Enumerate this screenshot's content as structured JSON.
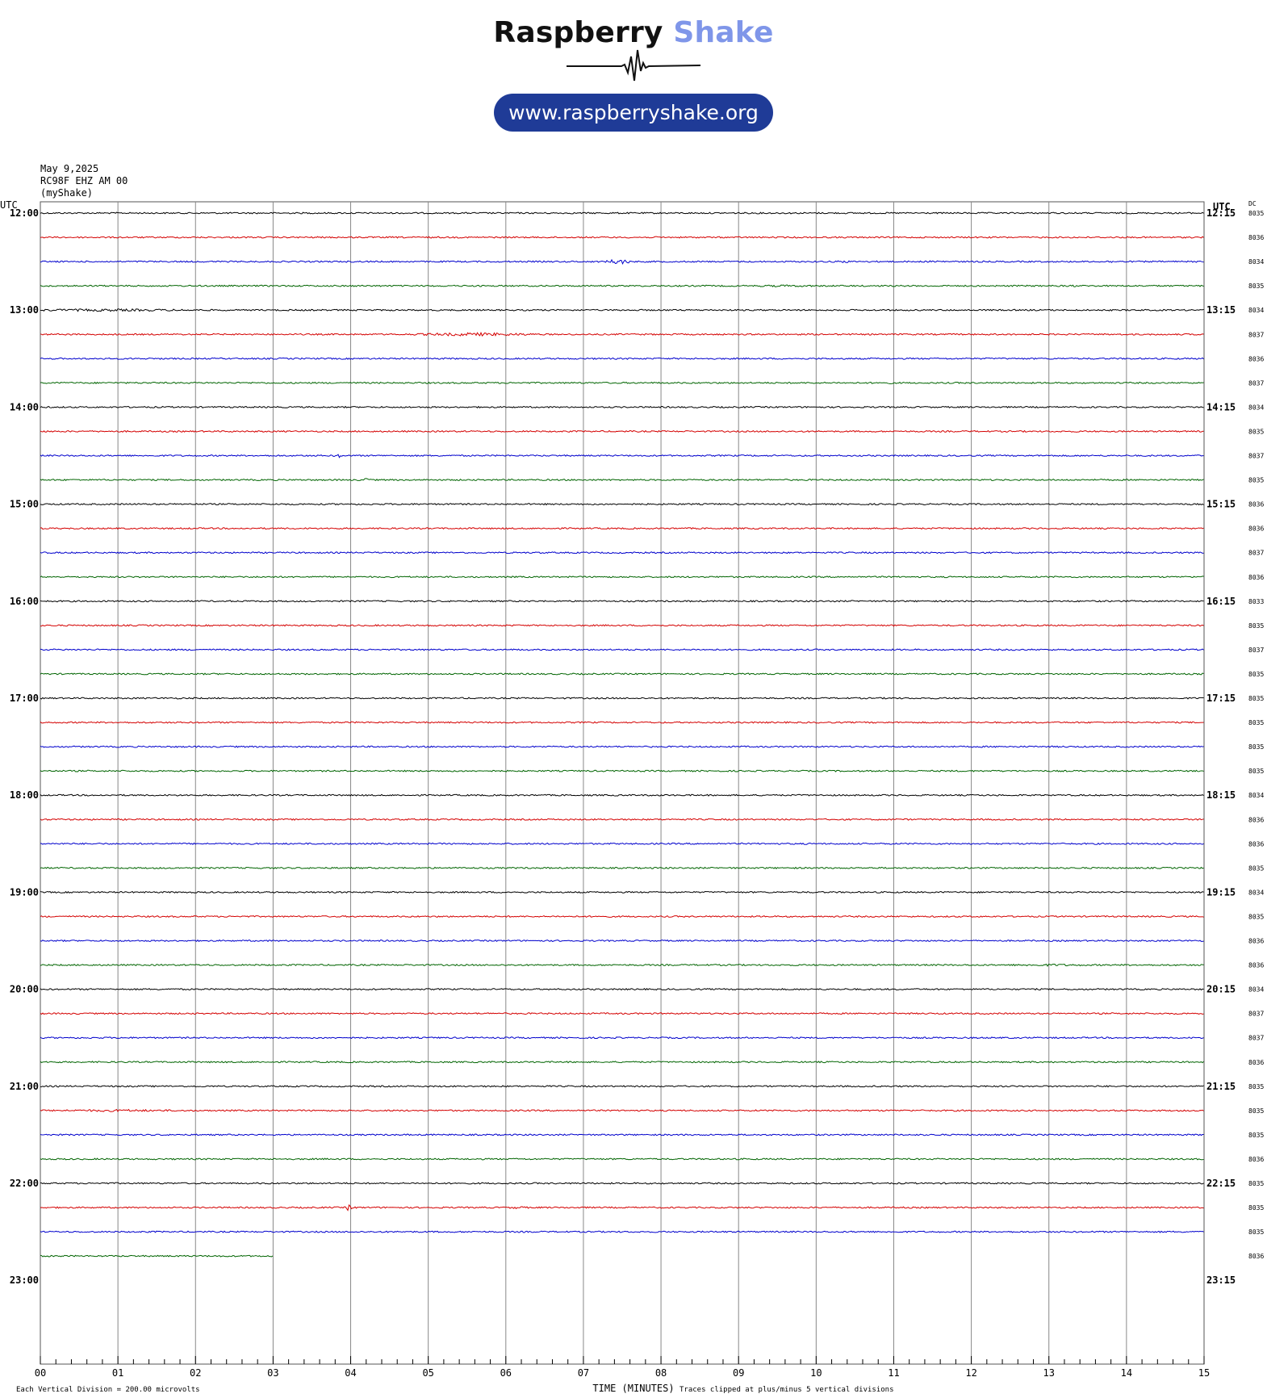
{
  "logo": {
    "title_part1": "Raspberry",
    "title_part2": "Shake",
    "url": "www.raspberryshake.org",
    "accent_color": "#7f96e9",
    "pill_color": "#1f3b97"
  },
  "info": {
    "date": "May 9,2025",
    "station": "RC98F EHZ AM 00",
    "network": "(myShake)"
  },
  "chart_data": {
    "type": "line",
    "title": "",
    "xlabel": "TIME (MINUTES)",
    "ylabel": "",
    "xlim": [
      0,
      15
    ],
    "x_ticks": [
      "00",
      "01",
      "02",
      "03",
      "04",
      "05",
      "06",
      "07",
      "08",
      "09",
      "10",
      "11",
      "12",
      "13",
      "14",
      "15"
    ],
    "left_axis_title": "UTC",
    "right_axis_title": "UTC",
    "dc_column_title": "DC",
    "hour_labels_left": [
      "12:00",
      "13:00",
      "14:00",
      "15:00",
      "16:00",
      "17:00",
      "18:00",
      "19:00",
      "20:00",
      "21:00",
      "22:00",
      "23:00"
    ],
    "hour_labels_right": [
      "12:15",
      "13:15",
      "14:15",
      "15:15",
      "16:15",
      "17:15",
      "18:15",
      "19:15",
      "20:15",
      "21:15",
      "22:15",
      "23:15"
    ],
    "trace_colors": [
      "#000000",
      "#d40000",
      "#0000cc",
      "#006400"
    ],
    "traces": [
      {
        "start": "12:00",
        "dc": "8035",
        "duration_min": 15,
        "events": []
      },
      {
        "start": "12:15",
        "dc": "8036",
        "duration_min": 15,
        "events": []
      },
      {
        "start": "12:30",
        "dc": "8034",
        "duration_min": 15,
        "events": [
          {
            "t": 7.45,
            "amp": 3.5,
            "dur": 0.3
          },
          {
            "t": 10.35,
            "amp": 1.6,
            "dur": 0.3
          },
          {
            "t": 11.55,
            "amp": 1.5,
            "dur": 0.3
          },
          {
            "t": 13.8,
            "amp": 1.4,
            "dur": 0.3
          }
        ]
      },
      {
        "start": "12:45",
        "dc": "8035",
        "duration_min": 15,
        "events": [
          {
            "t": 9.6,
            "amp": 1.3,
            "dur": 1.5
          },
          {
            "t": 13.3,
            "amp": 1.4,
            "dur": 0.3
          }
        ]
      },
      {
        "start": "13:00",
        "dc": "8034",
        "duration_min": 15,
        "events": [
          {
            "t": 0.8,
            "amp": 1.6,
            "dur": 3.5
          }
        ]
      },
      {
        "start": "13:15",
        "dc": "8037",
        "duration_min": 15,
        "events": [
          {
            "t": 5.6,
            "amp": 2.2,
            "dur": 1.6
          }
        ]
      },
      {
        "start": "13:30",
        "dc": "8036",
        "duration_min": 15,
        "events": []
      },
      {
        "start": "13:45",
        "dc": "8037",
        "duration_min": 15,
        "events": [
          {
            "t": 10.9,
            "amp": 1.3,
            "dur": 0.4
          }
        ]
      },
      {
        "start": "14:00",
        "dc": "8034",
        "duration_min": 15,
        "events": []
      },
      {
        "start": "14:15",
        "dc": "8035",
        "duration_min": 15,
        "events": []
      },
      {
        "start": "14:30",
        "dc": "8037",
        "duration_min": 15,
        "events": [
          {
            "t": 3.85,
            "amp": 2.5,
            "dur": 0.12
          }
        ]
      },
      {
        "start": "14:45",
        "dc": "8035",
        "duration_min": 15,
        "events": [
          {
            "t": 4.2,
            "amp": 3.0,
            "dur": 0.08
          }
        ]
      },
      {
        "start": "15:00",
        "dc": "8036",
        "duration_min": 15,
        "events": []
      },
      {
        "start": "15:15",
        "dc": "8036",
        "duration_min": 15,
        "events": []
      },
      {
        "start": "15:30",
        "dc": "8037",
        "duration_min": 15,
        "events": []
      },
      {
        "start": "15:45",
        "dc": "8036",
        "duration_min": 15,
        "events": []
      },
      {
        "start": "16:00",
        "dc": "8033",
        "duration_min": 15,
        "events": []
      },
      {
        "start": "16:15",
        "dc": "8035",
        "duration_min": 15,
        "events": []
      },
      {
        "start": "16:30",
        "dc": "8037",
        "duration_min": 15,
        "events": []
      },
      {
        "start": "16:45",
        "dc": "8035",
        "duration_min": 15,
        "events": []
      },
      {
        "start": "17:00",
        "dc": "8035",
        "duration_min": 15,
        "events": []
      },
      {
        "start": "17:15",
        "dc": "8035",
        "duration_min": 15,
        "events": []
      },
      {
        "start": "17:30",
        "dc": "8035",
        "duration_min": 15,
        "events": []
      },
      {
        "start": "17:45",
        "dc": "8035",
        "duration_min": 15,
        "events": []
      },
      {
        "start": "18:00",
        "dc": "8034",
        "duration_min": 15,
        "events": []
      },
      {
        "start": "18:15",
        "dc": "8036",
        "duration_min": 15,
        "events": []
      },
      {
        "start": "18:30",
        "dc": "8036",
        "duration_min": 15,
        "events": []
      },
      {
        "start": "18:45",
        "dc": "8035",
        "duration_min": 15,
        "events": []
      },
      {
        "start": "19:00",
        "dc": "8034",
        "duration_min": 15,
        "events": []
      },
      {
        "start": "19:15",
        "dc": "8035",
        "duration_min": 15,
        "events": []
      },
      {
        "start": "19:30",
        "dc": "8036",
        "duration_min": 15,
        "events": []
      },
      {
        "start": "19:45",
        "dc": "8036",
        "duration_min": 15,
        "events": [
          {
            "t": 13.0,
            "amp": 1.4,
            "dur": 1.6
          }
        ]
      },
      {
        "start": "20:00",
        "dc": "8034",
        "duration_min": 15,
        "events": []
      },
      {
        "start": "20:15",
        "dc": "8037",
        "duration_min": 15,
        "events": []
      },
      {
        "start": "20:30",
        "dc": "8037",
        "duration_min": 15,
        "events": []
      },
      {
        "start": "20:45",
        "dc": "8036",
        "duration_min": 15,
        "events": []
      },
      {
        "start": "21:00",
        "dc": "8035",
        "duration_min": 15,
        "events": []
      },
      {
        "start": "21:15",
        "dc": "8035",
        "duration_min": 15,
        "events": [
          {
            "t": 1.0,
            "amp": 1.5,
            "dur": 2.0
          }
        ]
      },
      {
        "start": "21:30",
        "dc": "8035",
        "duration_min": 15,
        "events": []
      },
      {
        "start": "21:45",
        "dc": "8036",
        "duration_min": 15,
        "events": []
      },
      {
        "start": "22:00",
        "dc": "8035",
        "duration_min": 15,
        "events": []
      },
      {
        "start": "22:15",
        "dc": "8035",
        "duration_min": 15,
        "events": [
          {
            "t": 3.98,
            "amp": 4.5,
            "dur": 0.08
          },
          {
            "t": 6.15,
            "amp": 1.6,
            "dur": 0.3
          }
        ]
      },
      {
        "start": "22:30",
        "dc": "8035",
        "duration_min": 15,
        "events": []
      },
      {
        "start": "22:45",
        "dc": "8036",
        "duration_min": 3,
        "events": []
      }
    ],
    "footer_left": "Each Vertical Division =  200.00 microvolts",
    "footer_right": "Traces clipped at plus/minus 5 vertical divisions"
  }
}
